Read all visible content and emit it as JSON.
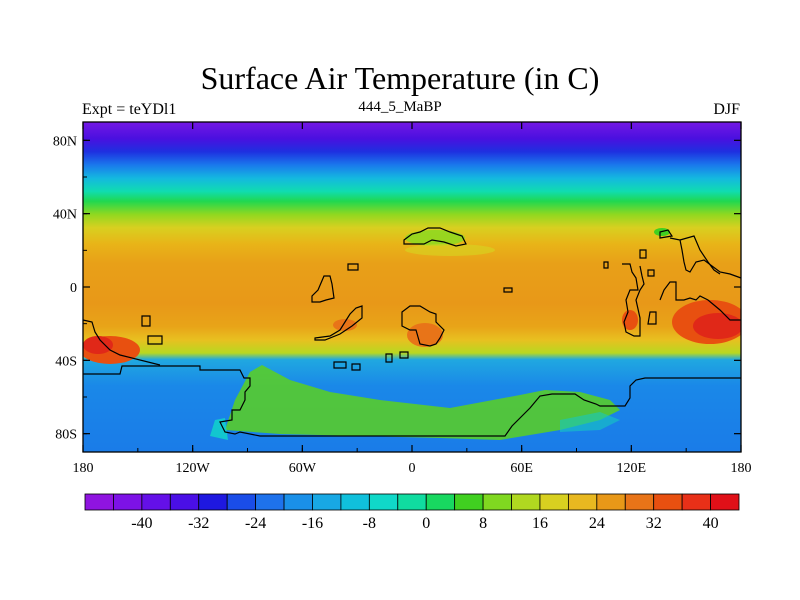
{
  "title": "Surface Air Temperature (in C)",
  "labels": {
    "left": "Expt = teYDl1",
    "center": "444_5_MaBP",
    "right": "DJF"
  },
  "map": {
    "projection": "cylindrical equidistant",
    "lon_range": [
      -180,
      180
    ],
    "lat_range": [
      -90,
      90
    ],
    "lat_ticks": [
      {
        "value": 80,
        "label": "80N"
      },
      {
        "value": 40,
        "label": "40N"
      },
      {
        "value": 0,
        "label": "0"
      },
      {
        "value": -40,
        "label": "40S"
      },
      {
        "value": -80,
        "label": "80S"
      }
    ],
    "lon_ticks": [
      {
        "value": -180,
        "label": "180"
      },
      {
        "value": -120,
        "label": "120W"
      },
      {
        "value": -60,
        "label": "60W"
      },
      {
        "value": 0,
        "label": "0"
      },
      {
        "value": 60,
        "label": "60E"
      },
      {
        "value": 120,
        "label": "120E"
      },
      {
        "value": 180,
        "label": "180"
      }
    ]
  },
  "colorbar": {
    "colors": [
      "#8f14e0",
      "#7d12e6",
      "#6410e8",
      "#4a0fe6",
      "#1e18e0",
      "#1a4de8",
      "#1e72ec",
      "#1a90e8",
      "#18a8e4",
      "#10c0dc",
      "#10d8c8",
      "#10dca0",
      "#18d860",
      "#40d020",
      "#80d820",
      "#b0d820",
      "#d8d020",
      "#e8b820",
      "#e89818",
      "#e87418",
      "#e85010",
      "#e83018",
      "#e01018"
    ],
    "tick_values": [
      "-40",
      "-32",
      "-24",
      "-16",
      "-8",
      "0",
      "8",
      "16",
      "24",
      "32",
      "40"
    ]
  }
}
